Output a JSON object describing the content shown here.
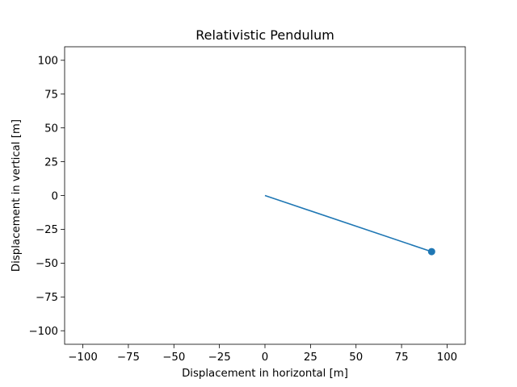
{
  "chart_data": {
    "type": "line",
    "title": "Relativistic Pendulum",
    "xlabel": "Displacement in horizontal [m]",
    "ylabel": "Displacement in vertical [m]",
    "xlim": [
      -110,
      110
    ],
    "ylim": [
      -110,
      110
    ],
    "xticks": [
      -100,
      -75,
      -50,
      -25,
      0,
      25,
      50,
      75,
      100
    ],
    "yticks": [
      -100,
      -75,
      -50,
      -25,
      0,
      25,
      50,
      75,
      100
    ],
    "xtick_labels": [
      "−100",
      "−75",
      "−50",
      "−25",
      "0",
      "25",
      "50",
      "75",
      "100"
    ],
    "ytick_labels": [
      "−100",
      "−75",
      "−50",
      "−25",
      "0",
      "25",
      "50",
      "75",
      "100"
    ],
    "grid": false,
    "series": [
      {
        "role": "rod",
        "x": [
          0,
          91.5
        ],
        "y": [
          0,
          -41.5
        ],
        "color": "#1f77b4"
      },
      {
        "role": "bob",
        "x": [
          91.5
        ],
        "y": [
          -41.5
        ],
        "color": "#1f77b4"
      }
    ]
  }
}
